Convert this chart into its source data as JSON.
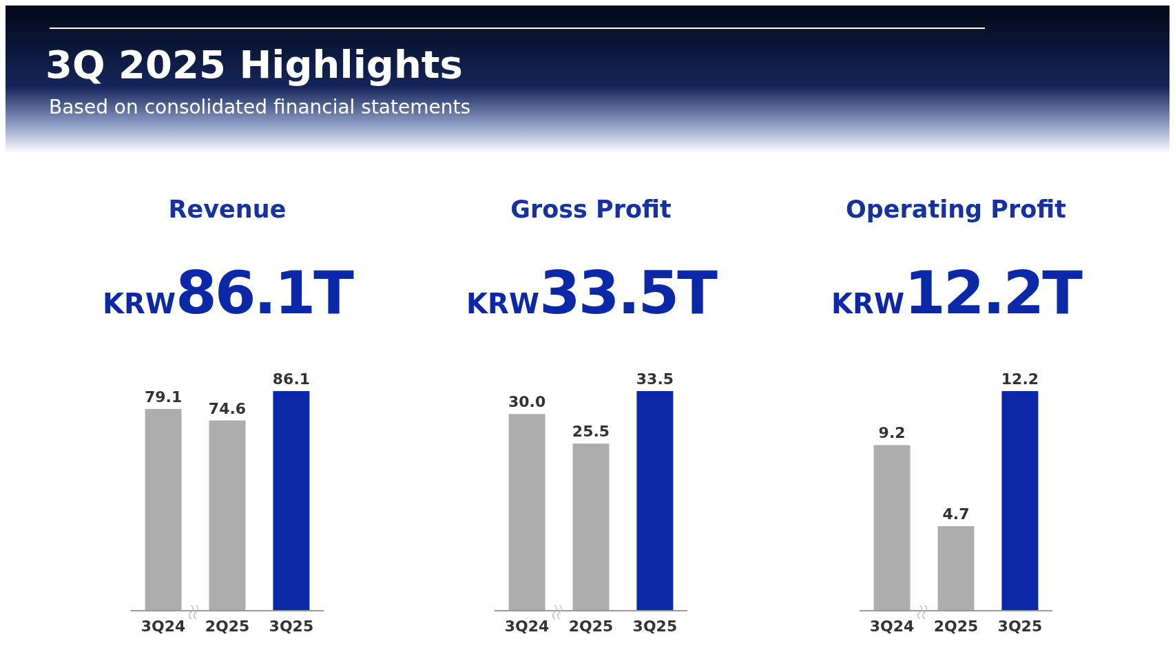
{
  "chart_data": [
    {
      "type": "other",
      "title": "3Q 2025 Highlights",
      "subtitle": "Based on consolidated financial statements"
    },
    {
      "type": "bar",
      "title": "Revenue",
      "annotations": [
        "KRW",
        "86.1T"
      ],
      "categories": [
        "3Q24",
        "2Q25",
        "3Q25"
      ],
      "values": [
        79.1,
        74.6,
        86.1
      ],
      "value_labels": [
        "79.1",
        "74.6",
        "86.1"
      ],
      "colors": [
        "#adadad",
        "#adadad",
        "#0a28a8"
      ]
    },
    {
      "type": "bar",
      "title": "Gross Profit",
      "annotations": [
        "KRW",
        "33.5T"
      ],
      "categories": [
        "3Q24",
        "2Q25",
        "3Q25"
      ],
      "values": [
        30.0,
        25.5,
        33.5
      ],
      "value_labels": [
        "30.0",
        "25.5",
        "33.5"
      ],
      "colors": [
        "#adadad",
        "#adadad",
        "#0a28a8"
      ]
    },
    {
      "type": "bar",
      "title": "Operating  Profit",
      "annotations": [
        "KRW",
        "12.2T"
      ],
      "categories": [
        "3Q24",
        "2Q25",
        "3Q25"
      ],
      "values": [
        9.2,
        4.7,
        12.2
      ],
      "value_labels": [
        "9.2",
        "4.7",
        "12.2"
      ],
      "colors": [
        "#adadad",
        "#adadad",
        "#0a28a8"
      ]
    }
  ]
}
